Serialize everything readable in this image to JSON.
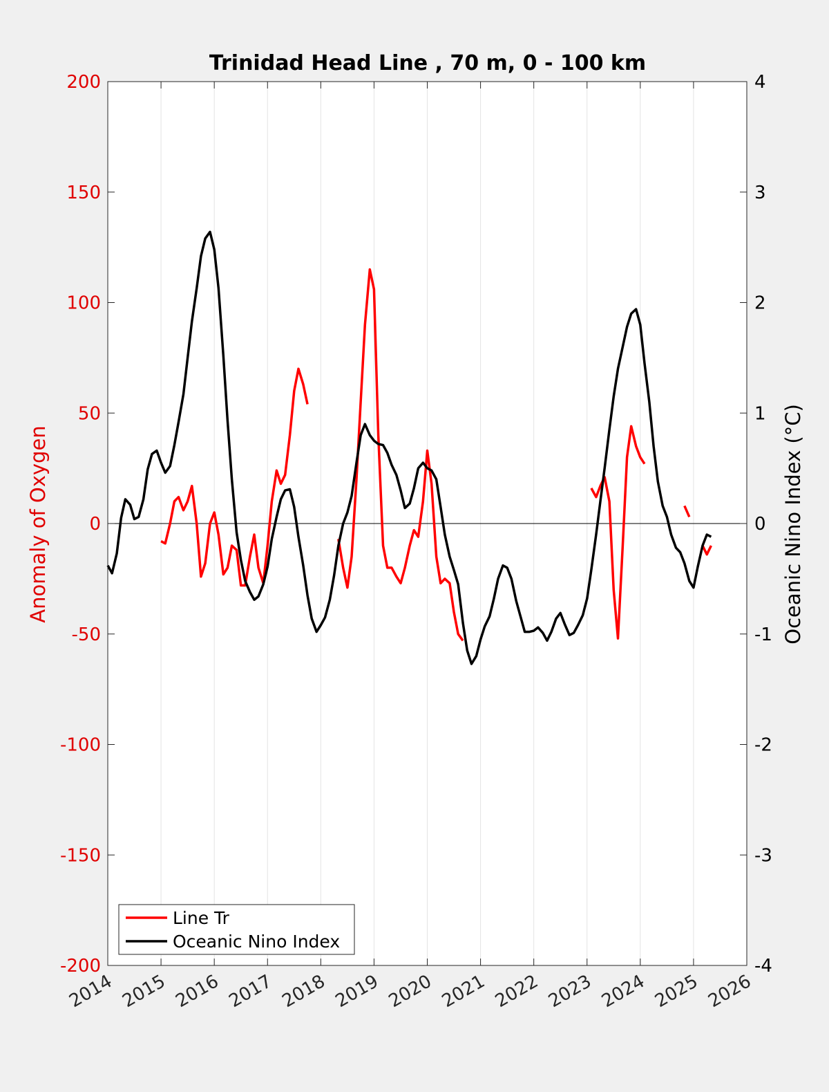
{
  "chart_data": {
    "type": "line",
    "title": "Trinidad Head Line , 70 m, 0 - 100 km",
    "xlabel": "",
    "ylabel_left": "Anomaly of Oxygen",
    "ylabel_right": "Oceanic Nino Index (°C)",
    "xlim": [
      2014,
      2026
    ],
    "ylim_left": [
      -200,
      200
    ],
    "ylim_right": [
      -4,
      4
    ],
    "x_ticks": [
      "2014",
      "2015",
      "2016",
      "2017",
      "2018",
      "2019",
      "2020",
      "2021",
      "2022",
      "2023",
      "2024",
      "2025",
      "2026"
    ],
    "y_ticks_left": [
      "200",
      "150",
      "100",
      "50",
      "0",
      "-50",
      "-100",
      "-150",
      "-200"
    ],
    "y_ticks_right": [
      "4",
      "3",
      "2",
      "1",
      "0",
      "-1",
      "-2",
      "-3",
      "-4"
    ],
    "grid": "vertical",
    "zero_line": true,
    "legend_position": "bottom-left",
    "colors": {
      "oxygen": "#ff0000",
      "oni": "#000000",
      "left_axis": "#e00000",
      "right_axis": "#000000"
    },
    "series": [
      {
        "name": "Line Tr",
        "axis": "left",
        "color": "#ff0000",
        "segments": [
          [
            [
              2015.0,
              -8
            ],
            [
              2015.08,
              -9
            ],
            [
              2015.17,
              0
            ],
            [
              2015.25,
              10
            ],
            [
              2015.33,
              12
            ],
            [
              2015.42,
              6
            ],
            [
              2015.5,
              10
            ],
            [
              2015.58,
              17
            ],
            [
              2015.67,
              0
            ],
            [
              2015.75,
              -24
            ],
            [
              2015.83,
              -18
            ],
            [
              2015.92,
              0
            ],
            [
              2016.0,
              5
            ],
            [
              2016.08,
              -5
            ],
            [
              2016.17,
              -23
            ],
            [
              2016.25,
              -20
            ],
            [
              2016.33,
              -10
            ],
            [
              2016.42,
              -12
            ],
            [
              2016.5,
              -28
            ],
            [
              2016.58,
              -28
            ],
            [
              2016.67,
              -15
            ],
            [
              2016.75,
              -5
            ],
            [
              2016.83,
              -20
            ],
            [
              2016.92,
              -27
            ],
            [
              2017.0,
              -10
            ],
            [
              2017.08,
              10
            ],
            [
              2017.17,
              24
            ],
            [
              2017.25,
              18
            ],
            [
              2017.33,
              22
            ],
            [
              2017.42,
              40
            ],
            [
              2017.5,
              60
            ],
            [
              2017.58,
              70
            ],
            [
              2017.67,
              63
            ],
            [
              2017.75,
              54
            ]
          ],
          [
            [
              2018.33,
              -7
            ],
            [
              2018.42,
              -20
            ],
            [
              2018.5,
              -29
            ],
            [
              2018.58,
              -15
            ],
            [
              2018.67,
              20
            ],
            [
              2018.75,
              55
            ],
            [
              2018.83,
              90
            ],
            [
              2018.92,
              115
            ],
            [
              2019.0,
              106
            ],
            [
              2019.08,
              40
            ],
            [
              2019.17,
              -10
            ],
            [
              2019.25,
              -20
            ],
            [
              2019.33,
              -20
            ],
            [
              2019.42,
              -24
            ],
            [
              2019.5,
              -27
            ],
            [
              2019.58,
              -20
            ],
            [
              2019.67,
              -10
            ],
            [
              2019.75,
              -3
            ],
            [
              2019.83,
              -6
            ],
            [
              2019.92,
              10
            ],
            [
              2020.0,
              33
            ],
            [
              2020.08,
              18
            ],
            [
              2020.17,
              -15
            ],
            [
              2020.25,
              -27
            ],
            [
              2020.33,
              -25
            ],
            [
              2020.42,
              -27
            ],
            [
              2020.5,
              -40
            ],
            [
              2020.58,
              -50
            ],
            [
              2020.67,
              -53
            ]
          ],
          [
            [
              2023.08,
              16
            ],
            [
              2023.17,
              12
            ],
            [
              2023.25,
              17
            ],
            [
              2023.33,
              21
            ],
            [
              2023.42,
              10
            ],
            [
              2023.5,
              -30
            ],
            [
              2023.58,
              -52
            ],
            [
              2023.67,
              -10
            ],
            [
              2023.75,
              30
            ],
            [
              2023.83,
              44
            ],
            [
              2023.92,
              35
            ],
            [
              2024.0,
              30
            ],
            [
              2024.08,
              27
            ]
          ],
          [
            [
              2024.83,
              8
            ],
            [
              2024.92,
              3
            ]
          ],
          [
            [
              2025.17,
              -10
            ],
            [
              2025.25,
              -14
            ],
            [
              2025.33,
              -10
            ]
          ]
        ]
      },
      {
        "name": "Oceanic Nino Index",
        "axis": "right",
        "color": "#000000",
        "segments": [
          [
            [
              2014.0,
              -0.38
            ],
            [
              2014.08,
              -0.45
            ],
            [
              2014.17,
              -0.27
            ],
            [
              2014.25,
              0.05
            ],
            [
              2014.33,
              0.22
            ],
            [
              2014.42,
              0.17
            ],
            [
              2014.5,
              0.04
            ],
            [
              2014.58,
              0.06
            ],
            [
              2014.67,
              0.22
            ],
            [
              2014.75,
              0.49
            ],
            [
              2014.83,
              0.63
            ],
            [
              2014.92,
              0.66
            ],
            [
              2015.0,
              0.55
            ],
            [
              2015.08,
              0.46
            ],
            [
              2015.17,
              0.52
            ],
            [
              2015.25,
              0.71
            ],
            [
              2015.33,
              0.92
            ],
            [
              2015.42,
              1.17
            ],
            [
              2015.5,
              1.5
            ],
            [
              2015.58,
              1.83
            ],
            [
              2015.67,
              2.13
            ],
            [
              2015.75,
              2.42
            ],
            [
              2015.83,
              2.58
            ],
            [
              2015.92,
              2.64
            ],
            [
              2016.0,
              2.48
            ],
            [
              2016.08,
              2.13
            ],
            [
              2016.17,
              1.52
            ],
            [
              2016.25,
              0.93
            ],
            [
              2016.33,
              0.4
            ],
            [
              2016.42,
              -0.08
            ],
            [
              2016.5,
              -0.33
            ],
            [
              2016.58,
              -0.52
            ],
            [
              2016.67,
              -0.62
            ],
            [
              2016.75,
              -0.69
            ],
            [
              2016.83,
              -0.66
            ],
            [
              2016.92,
              -0.55
            ],
            [
              2017.0,
              -0.39
            ],
            [
              2017.08,
              -0.14
            ],
            [
              2017.17,
              0.06
            ],
            [
              2017.25,
              0.22
            ],
            [
              2017.33,
              0.3
            ],
            [
              2017.42,
              0.31
            ],
            [
              2017.5,
              0.15
            ],
            [
              2017.58,
              -0.12
            ],
            [
              2017.67,
              -0.38
            ],
            [
              2017.75,
              -0.65
            ],
            [
              2017.83,
              -0.86
            ],
            [
              2017.92,
              -0.98
            ],
            [
              2018.0,
              -0.92
            ],
            [
              2018.08,
              -0.85
            ],
            [
              2018.17,
              -0.69
            ],
            [
              2018.25,
              -0.47
            ],
            [
              2018.33,
              -0.2
            ],
            [
              2018.42,
              0.0
            ],
            [
              2018.5,
              0.1
            ],
            [
              2018.58,
              0.25
            ],
            [
              2018.67,
              0.55
            ],
            [
              2018.75,
              0.8
            ],
            [
              2018.83,
              0.9
            ],
            [
              2018.92,
              0.8
            ],
            [
              2019.0,
              0.75
            ],
            [
              2019.08,
              0.72
            ],
            [
              2019.17,
              0.71
            ],
            [
              2019.25,
              0.64
            ],
            [
              2019.33,
              0.53
            ],
            [
              2019.42,
              0.44
            ],
            [
              2019.5,
              0.3
            ],
            [
              2019.58,
              0.14
            ],
            [
              2019.67,
              0.18
            ],
            [
              2019.75,
              0.32
            ],
            [
              2019.83,
              0.5
            ],
            [
              2019.92,
              0.55
            ],
            [
              2020.0,
              0.5
            ],
            [
              2020.08,
              0.48
            ],
            [
              2020.17,
              0.4
            ],
            [
              2020.25,
              0.15
            ],
            [
              2020.33,
              -0.1
            ],
            [
              2020.42,
              -0.3
            ],
            [
              2020.5,
              -0.42
            ],
            [
              2020.58,
              -0.55
            ],
            [
              2020.67,
              -0.9
            ],
            [
              2020.75,
              -1.15
            ],
            [
              2020.83,
              -1.27
            ],
            [
              2020.92,
              -1.2
            ],
            [
              2021.0,
              -1.05
            ],
            [
              2021.08,
              -0.93
            ],
            [
              2021.17,
              -0.84
            ],
            [
              2021.25,
              -0.68
            ],
            [
              2021.33,
              -0.5
            ],
            [
              2021.42,
              -0.38
            ],
            [
              2021.5,
              -0.4
            ],
            [
              2021.58,
              -0.5
            ],
            [
              2021.67,
              -0.7
            ],
            [
              2021.75,
              -0.84
            ],
            [
              2021.83,
              -0.98
            ],
            [
              2021.92,
              -0.98
            ],
            [
              2022.0,
              -0.97
            ],
            [
              2022.08,
              -0.94
            ],
            [
              2022.17,
              -0.99
            ],
            [
              2022.25,
              -1.06
            ],
            [
              2022.33,
              -0.98
            ],
            [
              2022.42,
              -0.86
            ],
            [
              2022.5,
              -0.81
            ],
            [
              2022.58,
              -0.91
            ],
            [
              2022.67,
              -1.01
            ],
            [
              2022.75,
              -0.99
            ],
            [
              2022.83,
              -0.92
            ],
            [
              2022.92,
              -0.83
            ],
            [
              2023.0,
              -0.68
            ],
            [
              2023.08,
              -0.42
            ],
            [
              2023.17,
              -0.1
            ],
            [
              2023.25,
              0.2
            ],
            [
              2023.33,
              0.5
            ],
            [
              2023.42,
              0.85
            ],
            [
              2023.5,
              1.15
            ],
            [
              2023.58,
              1.4
            ],
            [
              2023.67,
              1.6
            ],
            [
              2023.75,
              1.78
            ],
            [
              2023.83,
              1.9
            ],
            [
              2023.92,
              1.94
            ],
            [
              2024.0,
              1.8
            ],
            [
              2024.08,
              1.45
            ],
            [
              2024.17,
              1.1
            ],
            [
              2024.25,
              0.7
            ],
            [
              2024.33,
              0.38
            ],
            [
              2024.42,
              0.16
            ],
            [
              2024.5,
              0.06
            ],
            [
              2024.58,
              -0.1
            ],
            [
              2024.67,
              -0.22
            ],
            [
              2024.75,
              -0.26
            ],
            [
              2024.83,
              -0.36
            ],
            [
              2024.92,
              -0.52
            ],
            [
              2025.0,
              -0.58
            ],
            [
              2025.08,
              -0.39
            ],
            [
              2025.17,
              -0.2
            ],
            [
              2025.25,
              -0.1
            ],
            [
              2025.33,
              -0.12
            ]
          ]
        ]
      }
    ]
  }
}
